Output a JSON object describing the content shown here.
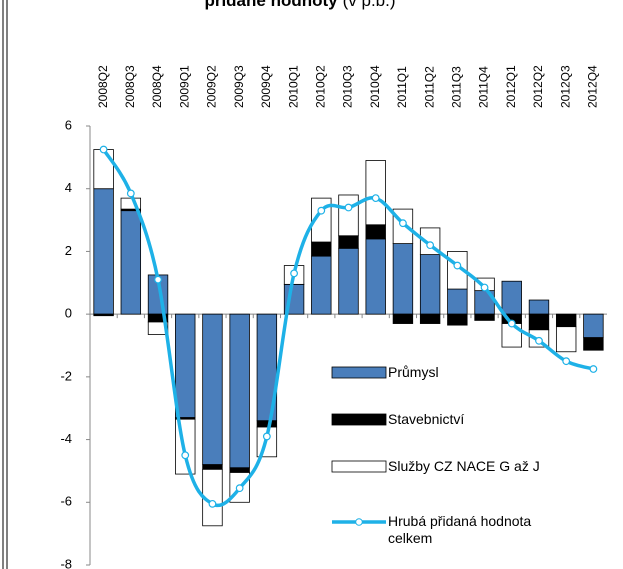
{
  "chart_data": {
    "type": "bar-line",
    "title": "přidané hodnoty",
    "subtitle": "(v p.b.)",
    "categories": [
      "2008Q2",
      "2008Q3",
      "2008Q4",
      "2009Q1",
      "2009Q2",
      "2009Q3",
      "2009Q4",
      "2010Q1",
      "2010Q2",
      "2010Q3",
      "2010Q4",
      "2011Q1",
      "2011Q2",
      "2011Q3",
      "2011Q4",
      "2012Q1",
      "2012Q2",
      "2012Q3",
      "2012Q4"
    ],
    "series": [
      {
        "name": "Průmysl",
        "kind": "bar",
        "color": "#4a7ebb",
        "values": [
          4.0,
          3.3,
          1.25,
          -3.3,
          -4.8,
          -4.9,
          -3.4,
          0.95,
          1.85,
          2.1,
          2.4,
          2.25,
          1.9,
          0.8,
          0.75,
          1.05,
          0.45,
          0,
          -0.75
        ]
      },
      {
        "name": "Stavebnictví",
        "kind": "bar",
        "color": "#000000",
        "values": [
          -0.05,
          0.05,
          -0.25,
          -0.05,
          -0.15,
          -0.15,
          -0.2,
          0,
          0.45,
          0.4,
          0.45,
          -0.3,
          -0.3,
          -0.35,
          -0.2,
          -0.3,
          -0.5,
          -0.4,
          -0.4
        ]
      },
      {
        "name": "Služby CZ NACE G až J",
        "kind": "bar",
        "color": "#ffffff",
        "values": [
          1.25,
          0.35,
          -0.4,
          -1.75,
          -1.8,
          -0.95,
          -0.95,
          0.6,
          1.4,
          1.3,
          2.05,
          1.1,
          0.85,
          1.2,
          0.4,
          -0.75,
          -0.55,
          -0.8,
          0
        ]
      },
      {
        "name": "Hrubá přidaná hodnota celkem",
        "kind": "line",
        "color": "#1eb1e7",
        "values": [
          5.25,
          3.85,
          1.1,
          -4.5,
          -6.05,
          -5.55,
          -3.9,
          1.3,
          3.3,
          3.4,
          3.7,
          2.9,
          2.2,
          1.55,
          0.85,
          -0.3,
          -0.85,
          -1.5,
          -1.75
        ]
      }
    ],
    "ylim": [
      -8,
      6
    ],
    "yticks": [
      -8,
      -6,
      -4,
      -2,
      0,
      2,
      4,
      6
    ],
    "legend": "lower right"
  }
}
